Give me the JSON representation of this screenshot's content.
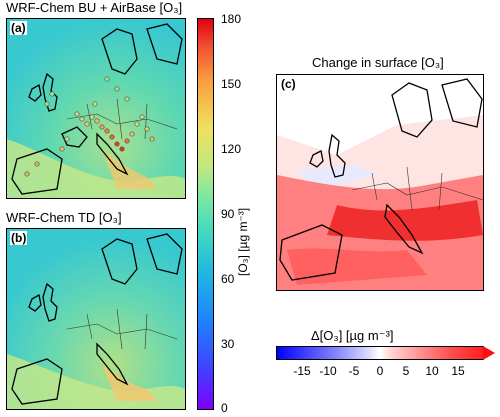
{
  "panel_a": {
    "title": "WRF-Chem BU + AirBase [O₃]",
    "label": "(a)"
  },
  "panel_b": {
    "title": "WRF-Chem TD [O₃]",
    "label": "(b)"
  },
  "panel_c": {
    "title": "Change in surface [O₃]",
    "label": "(c)"
  },
  "colorbar_vertical": {
    "unit": "[O₃] [µg m⁻³]",
    "ticks": [
      "180",
      "150",
      "120",
      "90",
      "60",
      "30",
      "0"
    ],
    "range": [
      0,
      180
    ]
  },
  "colorbar_horizontal": {
    "label": "Δ[O₃] [µg m⁻³]",
    "ticks": [
      "-15",
      "-10",
      "-5",
      "0",
      "5",
      "10",
      "15"
    ],
    "range": [
      -20,
      20
    ]
  }
}
